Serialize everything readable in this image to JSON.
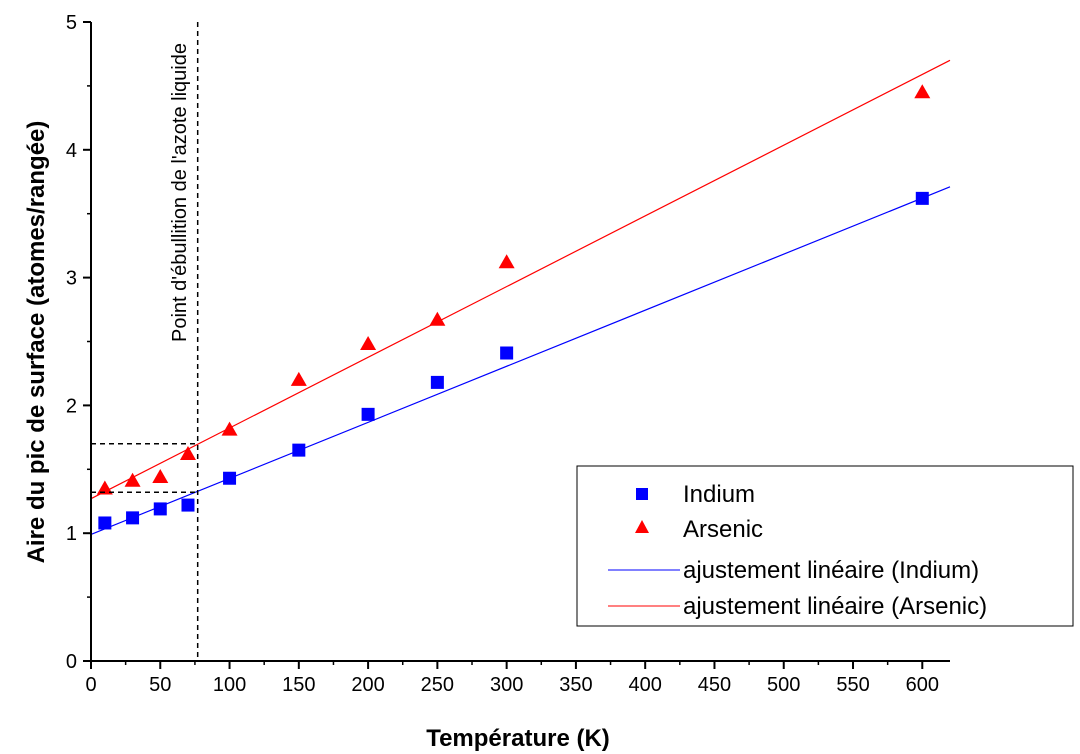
{
  "chart_data": {
    "type": "scatter",
    "xlabel": "Température (K)",
    "ylabel": "Aire du pic de surface (atomes/rangée)",
    "xlim": [
      0,
      620
    ],
    "ylim": [
      0,
      5
    ],
    "x_ticks": [
      "0",
      "50",
      "100",
      "150",
      "200",
      "250",
      "300",
      "350",
      "400",
      "450",
      "500",
      "550",
      "600"
    ],
    "y_ticks": [
      "0",
      "1",
      "2",
      "3",
      "4",
      "5"
    ],
    "series": [
      {
        "name": "Indium",
        "marker": "square",
        "color": "#0000ff",
        "x": [
          10,
          30,
          50,
          70,
          100,
          150,
          200,
          250,
          300,
          600
        ],
        "y": [
          1.08,
          1.12,
          1.19,
          1.22,
          1.43,
          1.65,
          1.93,
          2.18,
          2.41,
          3.62
        ]
      },
      {
        "name": "Arsenic",
        "marker": "triangle",
        "color": "#ff0000",
        "x": [
          10,
          30,
          50,
          70,
          100,
          150,
          200,
          250,
          300,
          600
        ],
        "y": [
          1.35,
          1.41,
          1.44,
          1.62,
          1.81,
          2.2,
          2.48,
          2.67,
          3.12,
          4.45
        ]
      },
      {
        "name": "ajustement linéaire (Indium)",
        "type": "line",
        "color": "#0000ff",
        "x": [
          0,
          620
        ],
        "y": [
          0.99,
          3.71
        ]
      },
      {
        "name": "ajustement linéaire (Arsenic)",
        "type": "line",
        "color": "#ff0000",
        "x": [
          0,
          620
        ],
        "y": [
          1.27,
          4.7
        ]
      }
    ],
    "annotation": {
      "text": "Point d'ébullition de l'azote liquide",
      "x": 77,
      "level_arsenic": 1.7,
      "level_indium": 1.32
    },
    "legend": "bottom-right",
    "grid": false
  }
}
